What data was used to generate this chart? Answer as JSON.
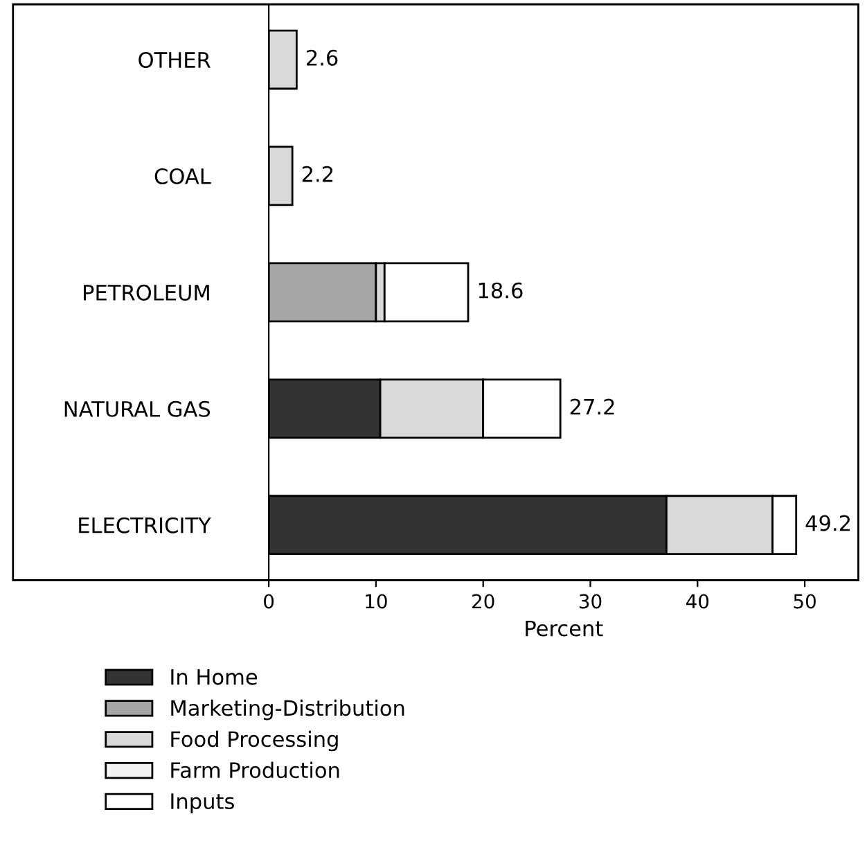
{
  "chart_data": {
    "type": "bar",
    "orientation": "horizontal",
    "stacked": true,
    "xlabel": "Percent",
    "categories": [
      "OTHER",
      "COAL",
      "PETROLEUM",
      "NATURAL GAS",
      "ELECTRICITY"
    ],
    "series": [
      {
        "name": "In Home",
        "color": "#333333",
        "values": [
          null,
          null,
          null,
          10.4,
          37.1
        ]
      },
      {
        "name": "Marketing-Distribution",
        "color": "#a6a6a6",
        "values": [
          null,
          null,
          10.0,
          null,
          null
        ]
      },
      {
        "name": "Food Processing",
        "color": "#d9d9d9",
        "values": [
          2.6,
          2.2,
          0.8,
          9.6,
          9.9
        ]
      },
      {
        "name": "Farm Production",
        "color": "#f2f2f2",
        "values": [
          null,
          null,
          null,
          null,
          null
        ]
      },
      {
        "name": "Inputs",
        "color": "#ffffff",
        "values": [
          null,
          null,
          7.8,
          7.2,
          2.2
        ]
      }
    ],
    "totals": [
      "2.6",
      "2.2",
      "18.6",
      "27.2",
      "49.2"
    ],
    "xlim": [
      0,
      55
    ],
    "xticks": [
      0,
      10,
      20,
      30,
      40,
      50
    ],
    "grid": false,
    "legend": "bottom left"
  }
}
